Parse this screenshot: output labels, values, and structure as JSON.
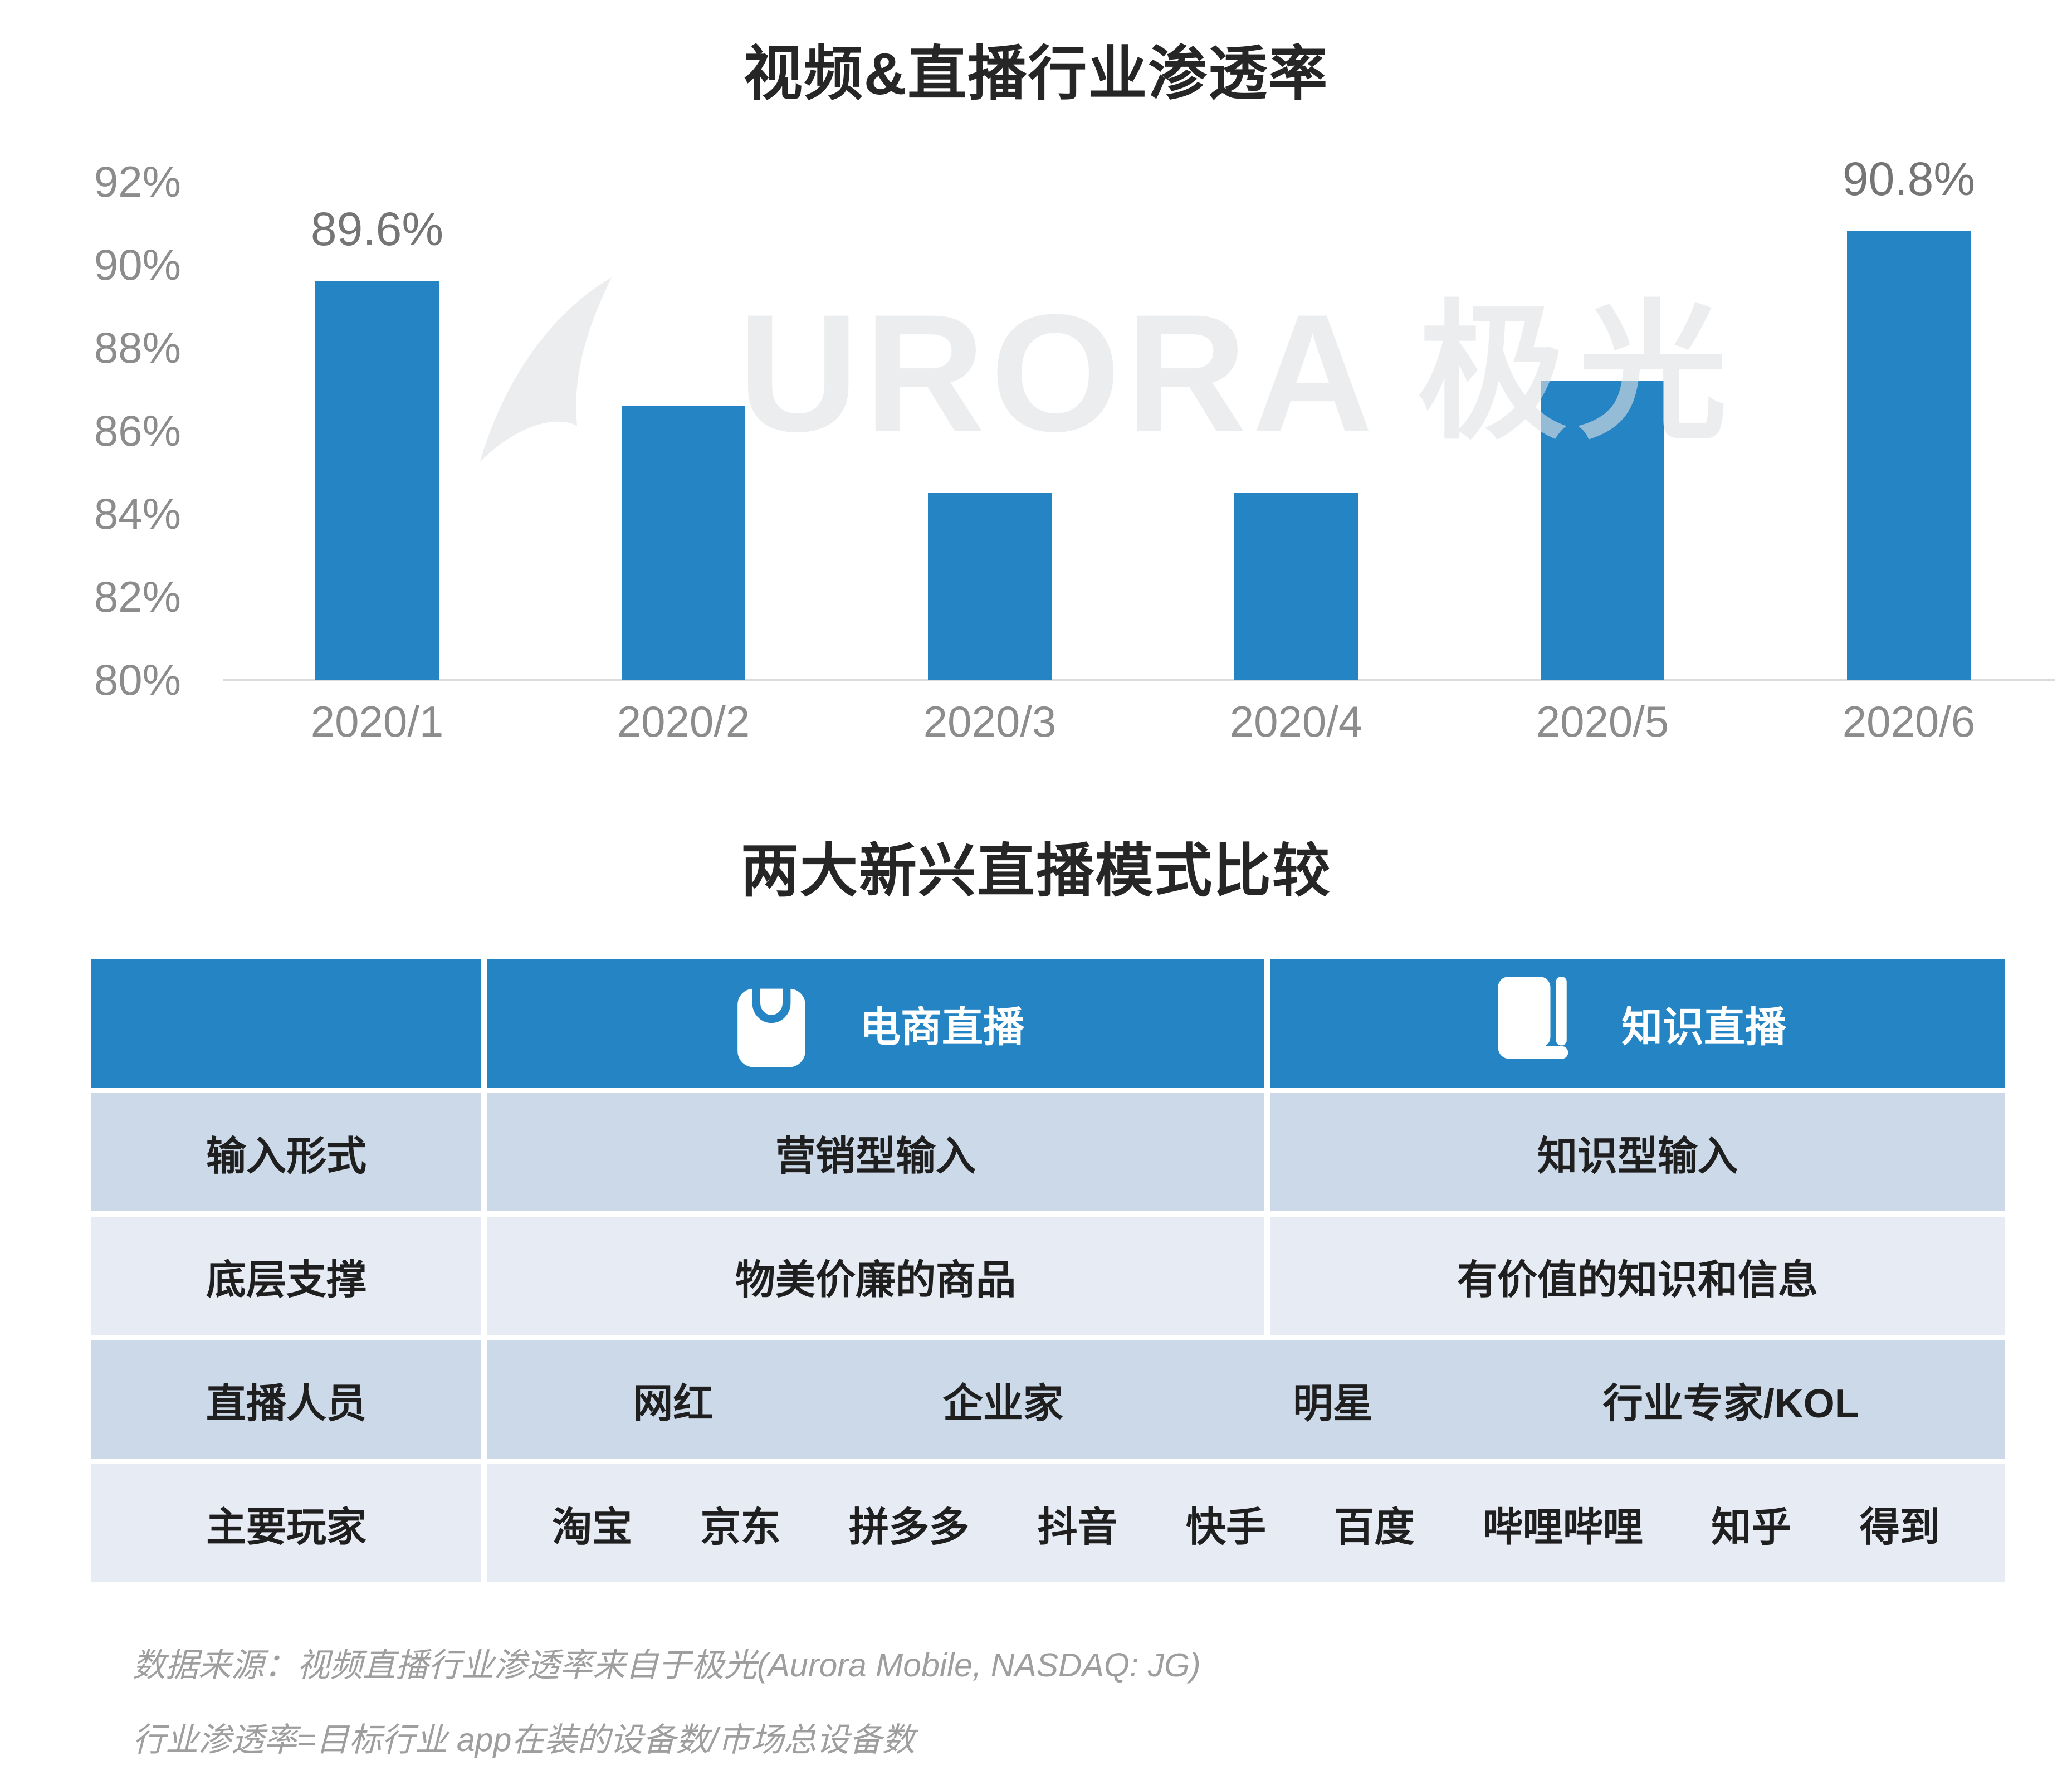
{
  "chart": {
    "title": "视频&直播行业渗透率",
    "y_ticks": [
      "92%",
      "90%",
      "88%",
      "86%",
      "84%",
      "82%",
      "80%"
    ],
    "watermark": {
      "latin": "URORA",
      "cn": "极光"
    }
  },
  "chart_data": {
    "type": "bar",
    "title": "视频&直播行业渗透率",
    "categories": [
      "2020/1",
      "2020/2",
      "2020/3",
      "2020/4",
      "2020/5",
      "2020/6"
    ],
    "values": [
      89.6,
      86.6,
      84.5,
      84.5,
      87.2,
      90.8
    ],
    "data_labels": [
      "89.6%",
      null,
      null,
      null,
      null,
      "90.8%"
    ],
    "xlabel": "",
    "ylabel": "",
    "ylim": [
      80,
      92
    ],
    "grid": false,
    "legend": "none",
    "bar_color": "#2484c4",
    "axis_line_color": "#dcdcdc",
    "tick_color": "#8c8c8c",
    "label_color": "#757575"
  },
  "table": {
    "title": "两大新兴直播模式比较",
    "header": {
      "corner": "",
      "col_ecommerce": {
        "label": "电商直播",
        "icon": "shopping-bag-icon"
      },
      "col_knowledge": {
        "label": "知识直播",
        "icon": "book-icon"
      }
    },
    "rows": [
      {
        "label": "输入形式",
        "merged": false,
        "cells": [
          "营销型输入",
          "知识型输入"
        ]
      },
      {
        "label": "底层支撑",
        "merged": false,
        "cells": [
          "物美价廉的商品",
          "有价值的知识和信息"
        ]
      },
      {
        "label": "直播人员",
        "merged": true,
        "items": [
          "网红",
          "企业家",
          "明星",
          "行业专家/KOL"
        ]
      },
      {
        "label": "主要玩家",
        "merged": true,
        "items": [
          "淘宝",
          "京东",
          "拼多多",
          "抖音",
          "快手",
          "百度",
          "哔哩哔哩",
          "知乎",
          "得到"
        ]
      }
    ],
    "colors": {
      "header_bg": "#2484c4",
      "row_dark_bg": "#ccd9e8",
      "row_light_bg": "#e7ebf4",
      "header_text": "#ffffff",
      "body_text": "#1f1f1f"
    }
  },
  "footer": {
    "line1": "数据来源：视频直播行业渗透率来自于极光(Aurora Mobile, NASDAQ: JG)",
    "line2": "行业渗透率=目标行业 app在装的设备数/市场总设备数"
  }
}
